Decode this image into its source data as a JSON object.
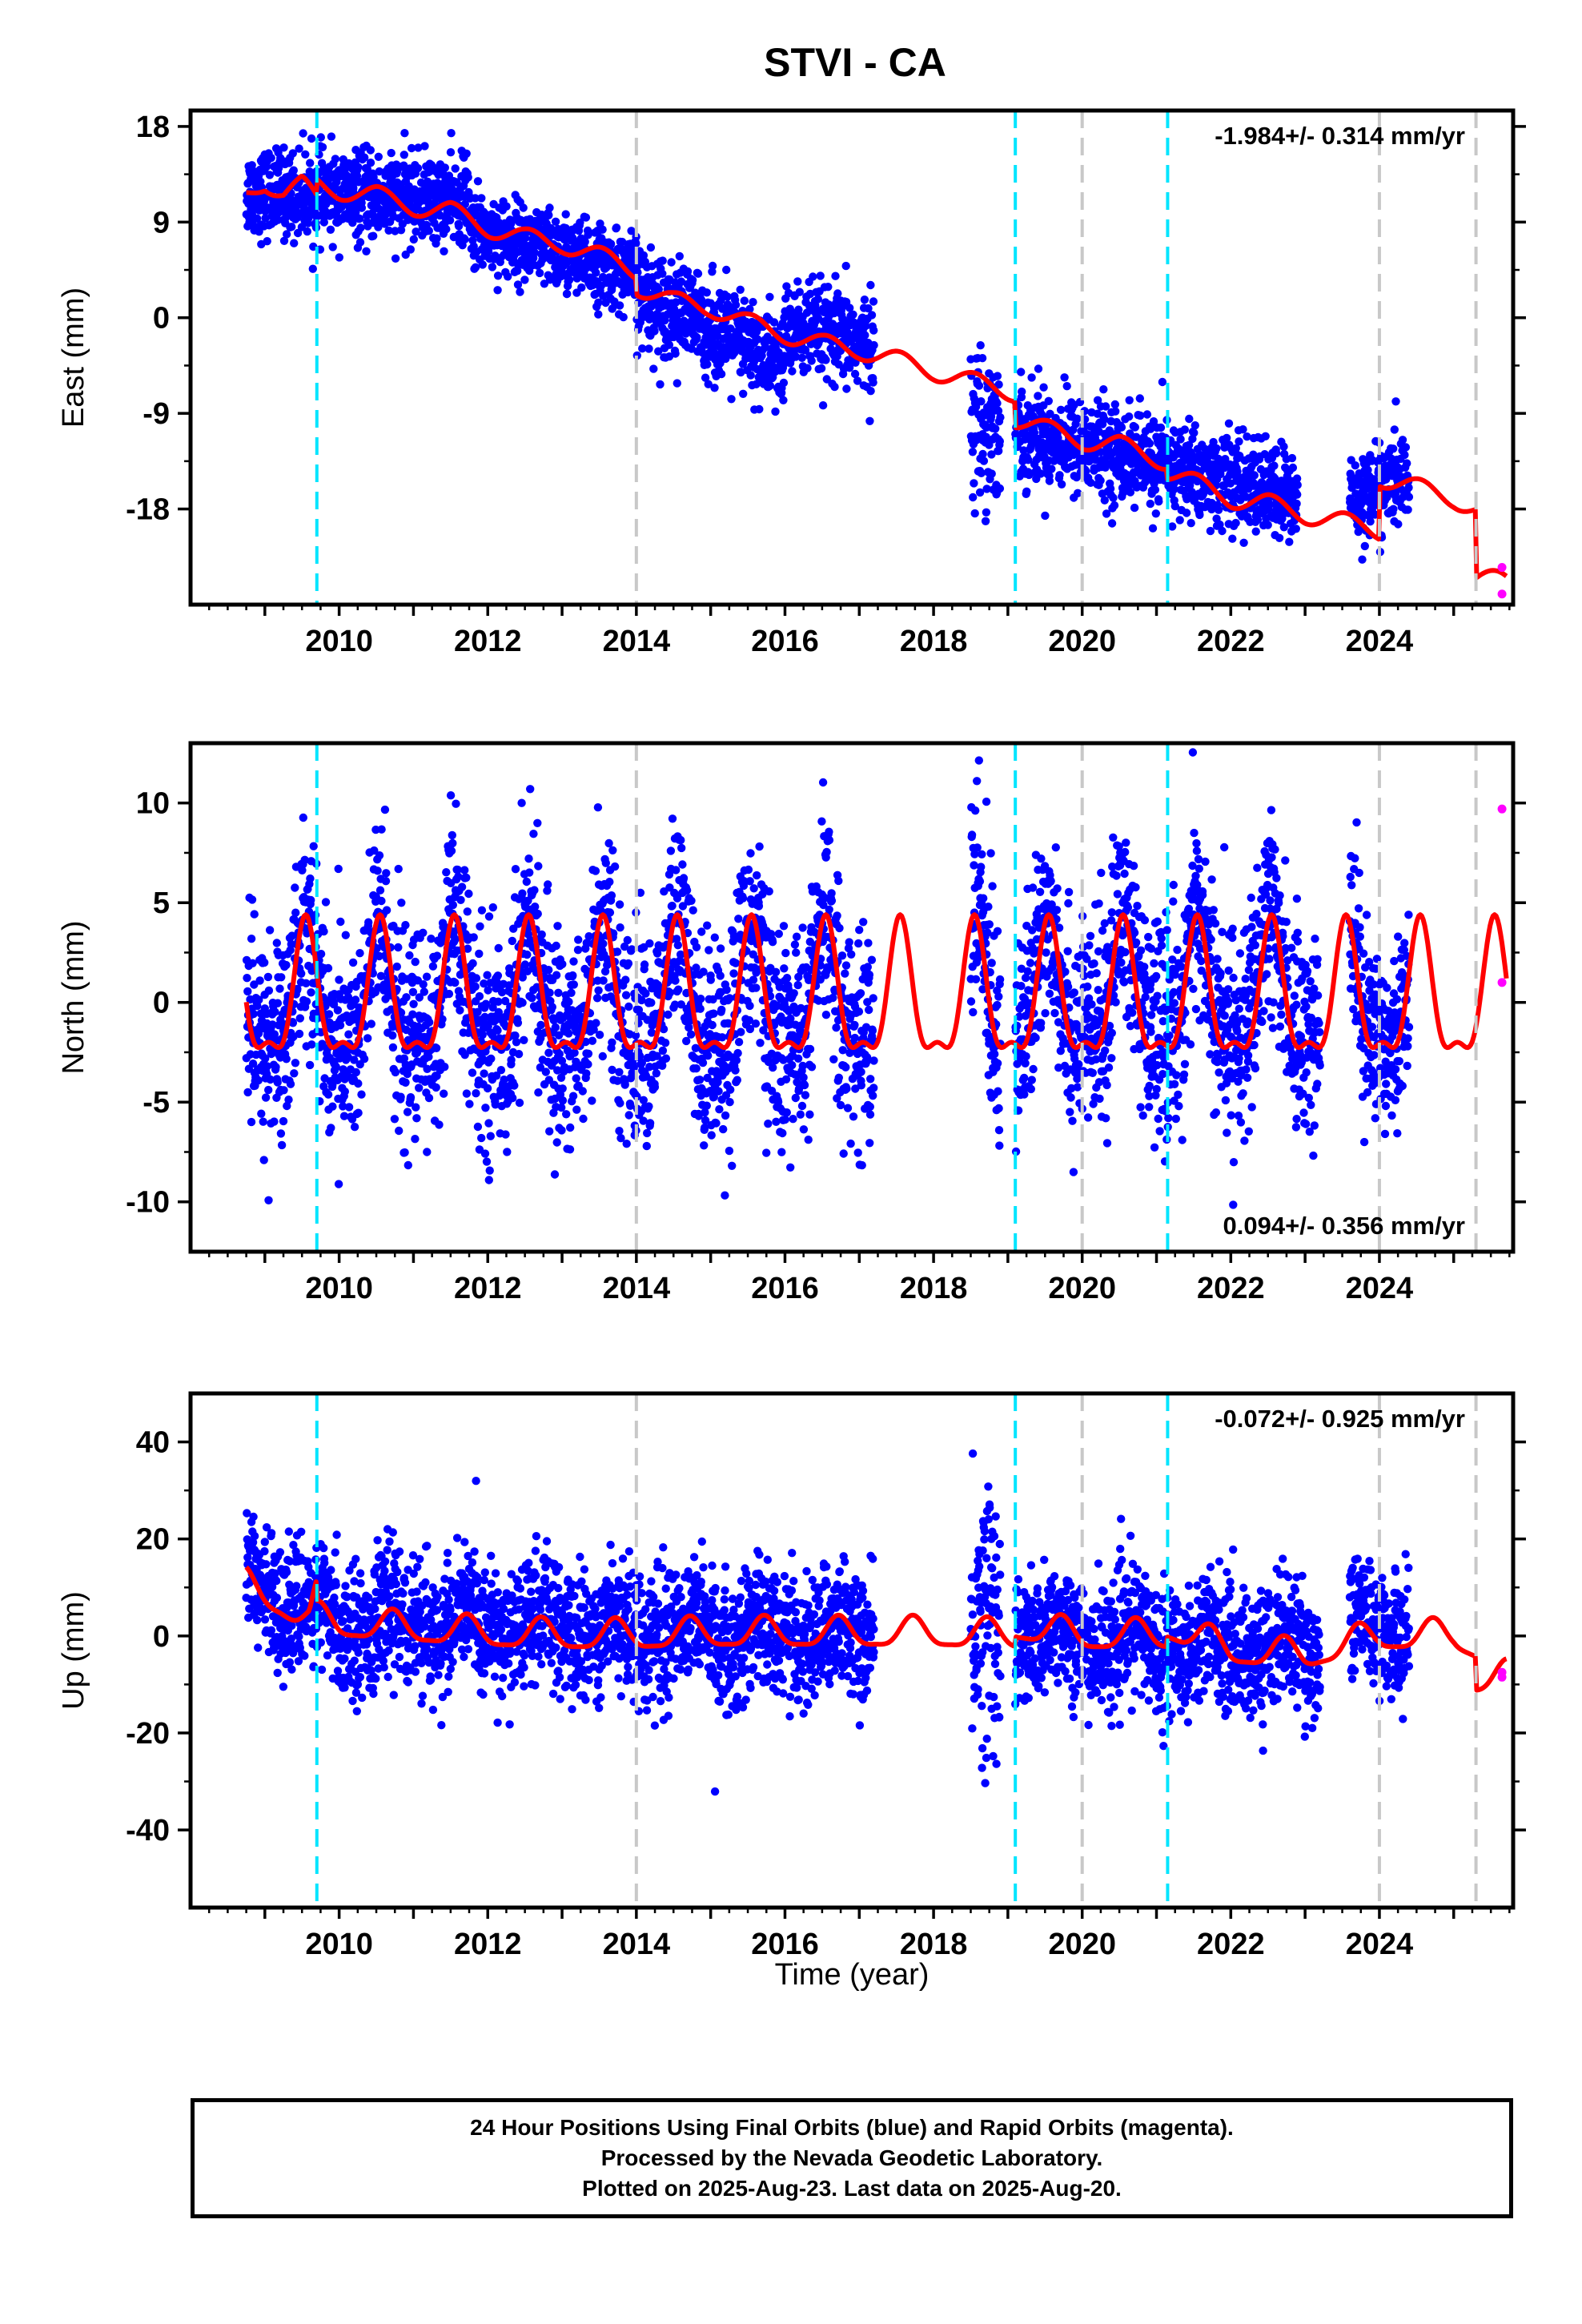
{
  "title": "STVI - CA",
  "x_axis_label": "Time (year)",
  "colors": {
    "final_orbits": "#0000ff",
    "rapid_orbits": "#ff00ff",
    "model": "#ff0000",
    "equipment_change": "#00e5ff",
    "other_event": "#c8c8c8"
  },
  "chart_data": [
    {
      "type": "scatter",
      "name": "east",
      "ylabel": "East (mm)",
      "xlim": [
        2008.0,
        2025.8
      ],
      "ylim": [
        -27.0,
        19.5
      ],
      "xticks": [
        "2010",
        "2012",
        "2014",
        "2016",
        "2018",
        "2020",
        "2022",
        "2024"
      ],
      "yticks": [
        "18",
        "9",
        "0",
        "-9",
        "-18"
      ],
      "annotation": "-1.984+/- 0.314 mm/yr",
      "annotation_position": "top-right",
      "cyan_events": [
        2009.7,
        2019.1,
        2021.15
      ],
      "gray_events": [
        2014.0,
        2020.0,
        2024.0,
        2025.3
      ],
      "model_nodes": {
        "x": [
          2008.75,
          2009.0,
          2009.25,
          2009.5,
          2009.7,
          2009.71,
          2010.0,
          2010.5,
          2011.0,
          2011.5,
          2012.0,
          2012.5,
          2013.0,
          2013.5,
          2013.99,
          2014.0,
          2014.5,
          2015.0,
          2015.5,
          2016.0,
          2016.5,
          2017.0,
          2017.5,
          2018.0,
          2018.5,
          2019.09,
          2019.1,
          2019.5,
          2020.0,
          2020.5,
          2021.14,
          2021.15,
          2021.5,
          2022.0,
          2022.5,
          2023.0,
          2023.5,
          2023.99,
          2024.0,
          2024.5,
          2025.0,
          2025.29,
          2025.3,
          2025.7
        ],
        "y": [
          11.5,
          12.8,
          11.8,
          12.5,
          11.0,
          12.5,
          12.0,
          11.5,
          10.5,
          10.0,
          8.5,
          7.5,
          7.0,
          5.8,
          4.5,
          3.0,
          1.5,
          1.0,
          -0.5,
          -1.5,
          -2.5,
          -3.0,
          -4.0,
          -5.0,
          -6.0,
          -7.0,
          -9.5,
          -10.5,
          -11.5,
          -12.0,
          -13.5,
          -14.5,
          -15.5,
          -17.0,
          -17.5,
          -18.5,
          -19.2,
          -20.0,
          -15.0,
          -16.0,
          -17.0,
          -18.0,
          -24.5,
          -24.8
        ]
      },
      "scatter_segments": [
        {
          "x": [
            2008.75,
            2011.75
          ],
          "y": [
            11.8,
            11.0
          ],
          "sd": 2.0
        },
        {
          "x": [
            2011.75,
            2014.0
          ],
          "y": [
            8.5,
            4.0
          ],
          "sd": 1.8
        },
        {
          "x": [
            2014.0,
            2016.0
          ],
          "y": [
            2.5,
            -4.5
          ],
          "sd": 2.3
        },
        {
          "x": [
            2016.0,
            2017.2
          ],
          "y": [
            -1.0,
            -2.5
          ],
          "sd": 2.2
        },
        {
          "x": [
            2018.5,
            2018.9
          ],
          "y": [
            -10.0,
            -10.0
          ],
          "sd": 3.5
        },
        {
          "x": [
            2019.1,
            2022.9
          ],
          "y": [
            -10.5,
            -17.0
          ],
          "sd": 2.2
        },
        {
          "x": [
            2023.6,
            2024.4
          ],
          "y": [
            -17.0,
            -15.0
          ],
          "sd": 2.0
        }
      ],
      "rapid_points": {
        "x": [
          2025.65,
          2025.65
        ],
        "y": [
          -23.5,
          -26.0
        ]
      }
    },
    {
      "type": "scatter",
      "name": "north",
      "ylabel": "North (mm)",
      "xlim": [
        2008.0,
        2025.8
      ],
      "ylim": [
        -12.5,
        13.0
      ],
      "xticks": [
        "2010",
        "2012",
        "2014",
        "2016",
        "2018",
        "2020",
        "2022",
        "2024"
      ],
      "yticks": [
        "10",
        "5",
        "0",
        "-5",
        "-10"
      ],
      "annotation": "0.094+/- 0.356 mm/yr",
      "annotation_position": "bottom-right",
      "cyan_events": [
        2009.7,
        2019.1,
        2021.15
      ],
      "gray_events": [
        2014.0,
        2020.0,
        2024.0,
        2025.3
      ],
      "seasonal": {
        "amplitude": 3.2,
        "peak_phase": 0.55,
        "semi_amplitude": 1.2
      },
      "scatter_segments": [
        {
          "x": [
            2008.75,
            2017.2
          ],
          "y": [
            0.0,
            0.0
          ],
          "sd": 2.6
        },
        {
          "x": [
            2018.5,
            2018.9
          ],
          "y": [
            1.0,
            1.0
          ],
          "sd": 3.2
        },
        {
          "x": [
            2019.1,
            2023.2
          ],
          "y": [
            0.5,
            0.5
          ],
          "sd": 2.6
        },
        {
          "x": [
            2023.6,
            2024.4
          ],
          "y": [
            0.5,
            0.5
          ],
          "sd": 2.2
        }
      ],
      "rapid_points": {
        "x": [
          2025.65,
          2025.65
        ],
        "y": [
          9.7,
          1.0
        ]
      }
    },
    {
      "type": "scatter",
      "name": "up",
      "ylabel": "Up (mm)",
      "xlim": [
        2008.0,
        2025.8
      ],
      "ylim": [
        -56.0,
        50.0
      ],
      "xticks": [
        "2010",
        "2012",
        "2014",
        "2016",
        "2018",
        "2020",
        "2022",
        "2024"
      ],
      "yticks": [
        "40",
        "20",
        "0",
        "-20",
        "-40"
      ],
      "annotation": "-0.072+/- 0.925 mm/yr",
      "annotation_position": "top-right",
      "cyan_events": [
        2009.7,
        2019.1,
        2021.15
      ],
      "gray_events": [
        2014.0,
        2020.0,
        2024.0,
        2025.3
      ],
      "model_nodes": {
        "x": [
          2008.75,
          2009.2,
          2009.6,
          2009.7,
          2009.71,
          2010.0,
          2011.0,
          2012.0,
          2013.0,
          2014.0,
          2015.0,
          2016.0,
          2017.0,
          2018.0,
          2019.09,
          2019.1,
          2020.0,
          2021.14,
          2021.15,
          2022.0,
          2023.0,
          2024.0,
          2025.0,
          2025.29,
          2025.3,
          2025.7
        ],
        "y": [
          10.5,
          7.0,
          3.0,
          8.0,
          3.5,
          2.5,
          1.5,
          0.5,
          0.0,
          0.0,
          0.5,
          0.5,
          0.5,
          0.5,
          0.0,
          2.0,
          0.0,
          0.0,
          2.0,
          -3.0,
          -4.0,
          0.0,
          0.0,
          -2.0,
          -9.0,
          -8.5
        ]
      },
      "seasonal": {
        "amplitude": 3.0,
        "peak_phase": 0.72,
        "semi_amplitude": 0.8
      },
      "scatter_segments": [
        {
          "x": [
            2008.75,
            2009.7
          ],
          "y": [
            12.0,
            4.0
          ],
          "sd": 6.0
        },
        {
          "x": [
            2009.7,
            2017.2
          ],
          "y": [
            3.0,
            0.0
          ],
          "sd": 6.5
        },
        {
          "x": [
            2018.5,
            2018.9
          ],
          "y": [
            2.0,
            2.0
          ],
          "sd": 14.0
        },
        {
          "x": [
            2019.1,
            2023.2
          ],
          "y": [
            0.0,
            -3.0
          ],
          "sd": 6.5
        },
        {
          "x": [
            2023.6,
            2024.4
          ],
          "y": [
            2.0,
            2.0
          ],
          "sd": 6.0
        }
      ],
      "rapid_points": {
        "x": [
          2025.65,
          2025.65
        ],
        "y": [
          -7.5,
          -8.5
        ]
      }
    }
  ],
  "footer": {
    "line1": "24 Hour Positions Using Final Orbits (blue) and Rapid Orbits (magenta).",
    "line2": "Processed by the Nevada Geodetic Laboratory.",
    "line3": "Plotted on 2025-Aug-23. Last data on 2025-Aug-20."
  }
}
